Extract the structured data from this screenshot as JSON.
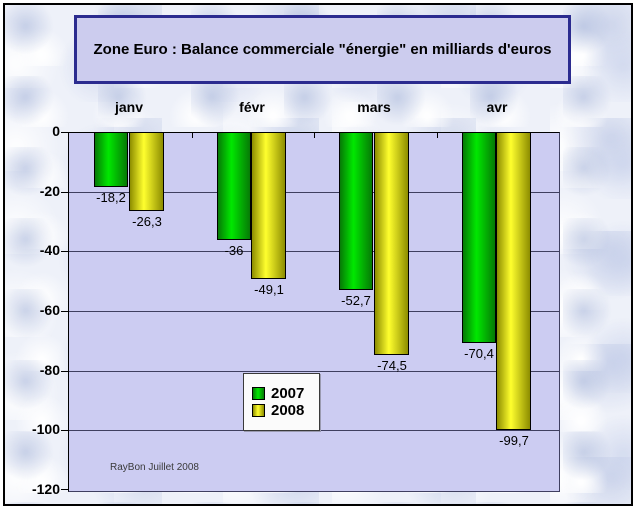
{
  "chart_data": {
    "type": "bar",
    "title": "Zone Euro : Balance commerciale \"énergie\" en milliards d'euros",
    "categories": [
      "janv",
      "févr",
      "mars",
      "avr"
    ],
    "series": [
      {
        "name": "2007",
        "color": "#00cc00",
        "color_bright": "#00e800",
        "color_dark": "#067a06",
        "values": [
          -18.2,
          -36,
          -52.7,
          -70.4
        ],
        "labels": [
          "-18,2",
          "-36",
          "-52,7",
          "-70,4"
        ]
      },
      {
        "name": "2008",
        "color": "#ffff00",
        "color_bright": "#ffff2e",
        "color_dark": "#8d8d00",
        "values": [
          -26.3,
          -49.1,
          -74.5,
          -99.7
        ],
        "labels": [
          "-26,3",
          "-49,1",
          "-74,5",
          "-99,7"
        ]
      }
    ],
    "xlabel": "",
    "ylabel": "",
    "ylim": [
      -120,
      0
    ],
    "yticks": [
      0,
      -20,
      -40,
      -60,
      -80,
      -100,
      -120
    ],
    "ytick_labels": [
      "0",
      "-20",
      "-40",
      "-60",
      "-80",
      "-100",
      "-120"
    ],
    "grid": true,
    "legend_position": "center-bottom",
    "annotation": "RayBon Juillet 2008"
  },
  "colors": {
    "plot_bg": "#ccccf2",
    "title_box_bg": "#ccccee",
    "title_box_border": "#2b2b8f",
    "gridline": "#3f3f60",
    "axis": "#000000",
    "legend_bg": "#fbfbfb",
    "frame_border": "#000000",
    "background_marble_tint": "#d6ddef"
  }
}
